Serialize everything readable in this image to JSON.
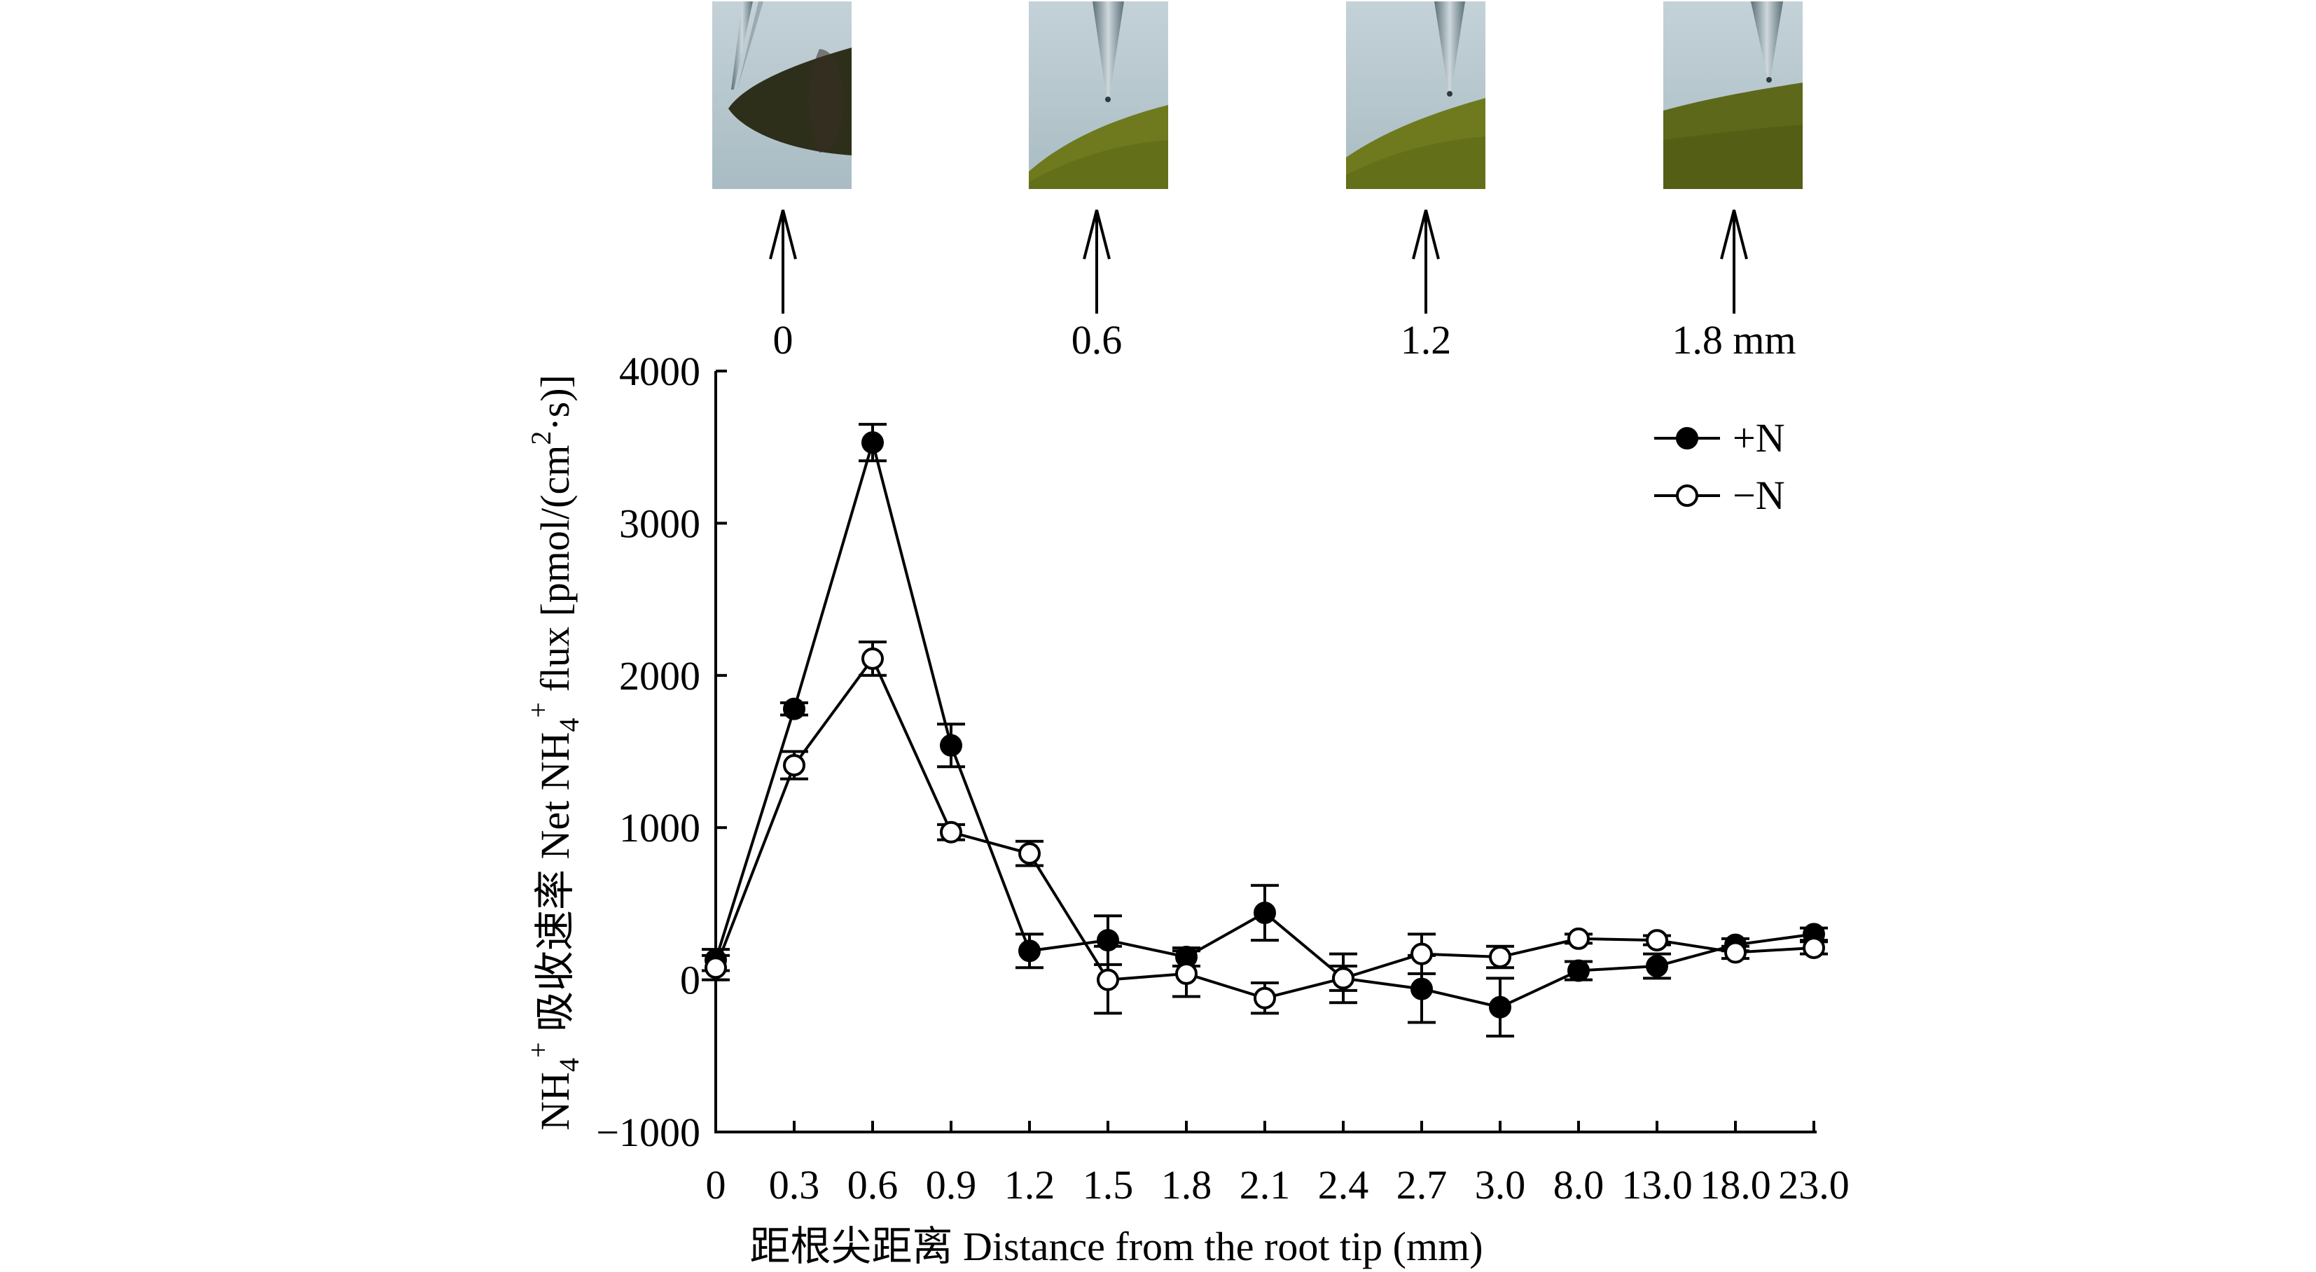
{
  "chart_data": {
    "type": "line",
    "title": "",
    "xlabel": "距根尖距离 Distance from the root tip (mm)",
    "ylabel": {
      "prefix": "NH",
      "sub": "4",
      "sup": "+",
      "mid": " 吸收速率 Net NH",
      "suffix": " flux [pmol/(cm",
      "sup2": "2",
      "tail": "·s)]"
    },
    "categories": [
      "0",
      "0.3",
      "0.6",
      "0.9",
      "1.2",
      "1.5",
      "1.8",
      "2.1",
      "2.4",
      "2.7",
      "3.0",
      "8.0",
      "13.0",
      "18.0",
      "23.0"
    ],
    "ylim": [
      -1000,
      4000
    ],
    "yticks": [
      -1000,
      0,
      1000,
      2000,
      3000,
      4000
    ],
    "ytick_labels": [
      "−1000",
      "0",
      "1000",
      "2000",
      "3000",
      "4000"
    ],
    "legend_position": "top-right",
    "series": [
      {
        "name": "+N",
        "marker": "filled-circle",
        "values": [
          130,
          1780,
          3530,
          1540,
          190,
          260,
          150,
          440,
          10,
          -60,
          -180,
          60,
          90,
          230,
          300
        ],
        "errors": [
          70,
          40,
          120,
          140,
          110,
          160,
          60,
          180,
          80,
          220,
          190,
          60,
          80,
          40,
          40
        ]
      },
      {
        "name": "−N",
        "marker": "open-circle",
        "values": [
          80,
          1410,
          2110,
          970,
          830,
          0,
          40,
          -120,
          10,
          170,
          150,
          270,
          260,
          180,
          210
        ],
        "errors": [
          80,
          90,
          110,
          50,
          80,
          220,
          150,
          100,
          160,
          130,
          70,
          30,
          30,
          40,
          40
        ]
      }
    ]
  },
  "top_panel": {
    "labels": [
      "0",
      "0.6",
      "1.2",
      "1.8 mm"
    ]
  }
}
